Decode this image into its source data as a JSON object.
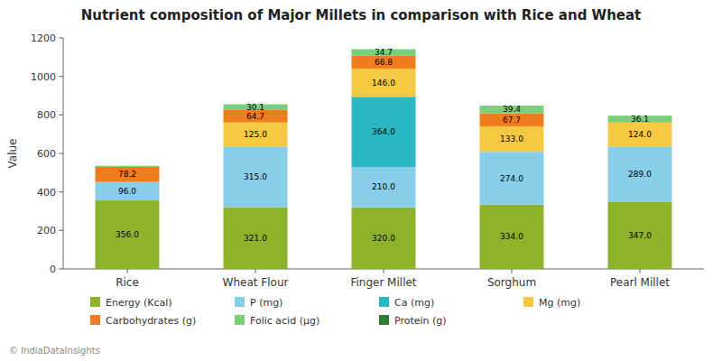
{
  "chart_data": {
    "type": "bar",
    "stacked": true,
    "data_labels": true,
    "grid": false,
    "legend": "bottom",
    "title": "Nutrient composition of Major Millets in comparison with Rice and Wheat",
    "y_label": "Value",
    "annotations": [
      "© IndiaDataInsights"
    ],
    "categories": [
      "Rice",
      "Wheat Flour",
      "Finger Millet",
      "Sorghum",
      "Pearl Millet"
    ],
    "ylim": [
      0,
      1200
    ],
    "yticks": [
      0,
      200,
      400,
      600,
      800,
      1000,
      1200
    ],
    "series": [
      {
        "name": "Energy (Kcal)",
        "color": "#8db32a",
        "values": [
          356.0,
          321.0,
          320.0,
          334.0,
          347.0
        ],
        "value_labels": [
          "356.0",
          "321.0",
          "320.0",
          "334.0",
          "347.0"
        ]
      },
      {
        "name": "P (mg)",
        "color": "#87CEEB",
        "values": [
          96.0,
          315.0,
          210.0,
          274.0,
          289.0
        ],
        "value_labels": [
          "96.0",
          "315.0",
          "210.0",
          "274.0",
          "289.0"
        ]
      },
      {
        "name": "Ca (mg)",
        "color": "#29b8c2",
        "values": [
          0.0,
          0.0,
          364.0,
          0.0,
          0.0
        ],
        "value_labels": [
          null,
          null,
          "364.0",
          null,
          null
        ]
      },
      {
        "name": "Mg (mg)",
        "color": "#f5c842",
        "values": [
          0.0,
          125.0,
          146.0,
          133.0,
          124.0
        ],
        "value_labels": [
          null,
          "125.0",
          "146.0",
          "133.0",
          "124.0"
        ]
      },
      {
        "name": "Carbohydrates (g)",
        "color": "#f07c1e",
        "values": [
          78.2,
          64.7,
          66.8,
          67.7,
          0.0
        ],
        "value_labels": [
          "78.2",
          "64.7",
          "66.8",
          "67.7",
          null
        ]
      },
      {
        "name": "Folic acid (μg)",
        "color": "#7dce7a",
        "values": [
          6.0,
          30.1,
          34.7,
          39.4,
          36.1
        ],
        "value_labels": [
          null,
          "30.1",
          "34.7",
          "39.4",
          "36.1"
        ]
      },
      {
        "name": "Protein (g)",
        "color": "#2e7d32",
        "values": [
          0.0,
          0.0,
          0.0,
          0.0,
          0.0
        ],
        "value_labels": [
          null,
          null,
          null,
          null,
          null
        ]
      }
    ]
  }
}
